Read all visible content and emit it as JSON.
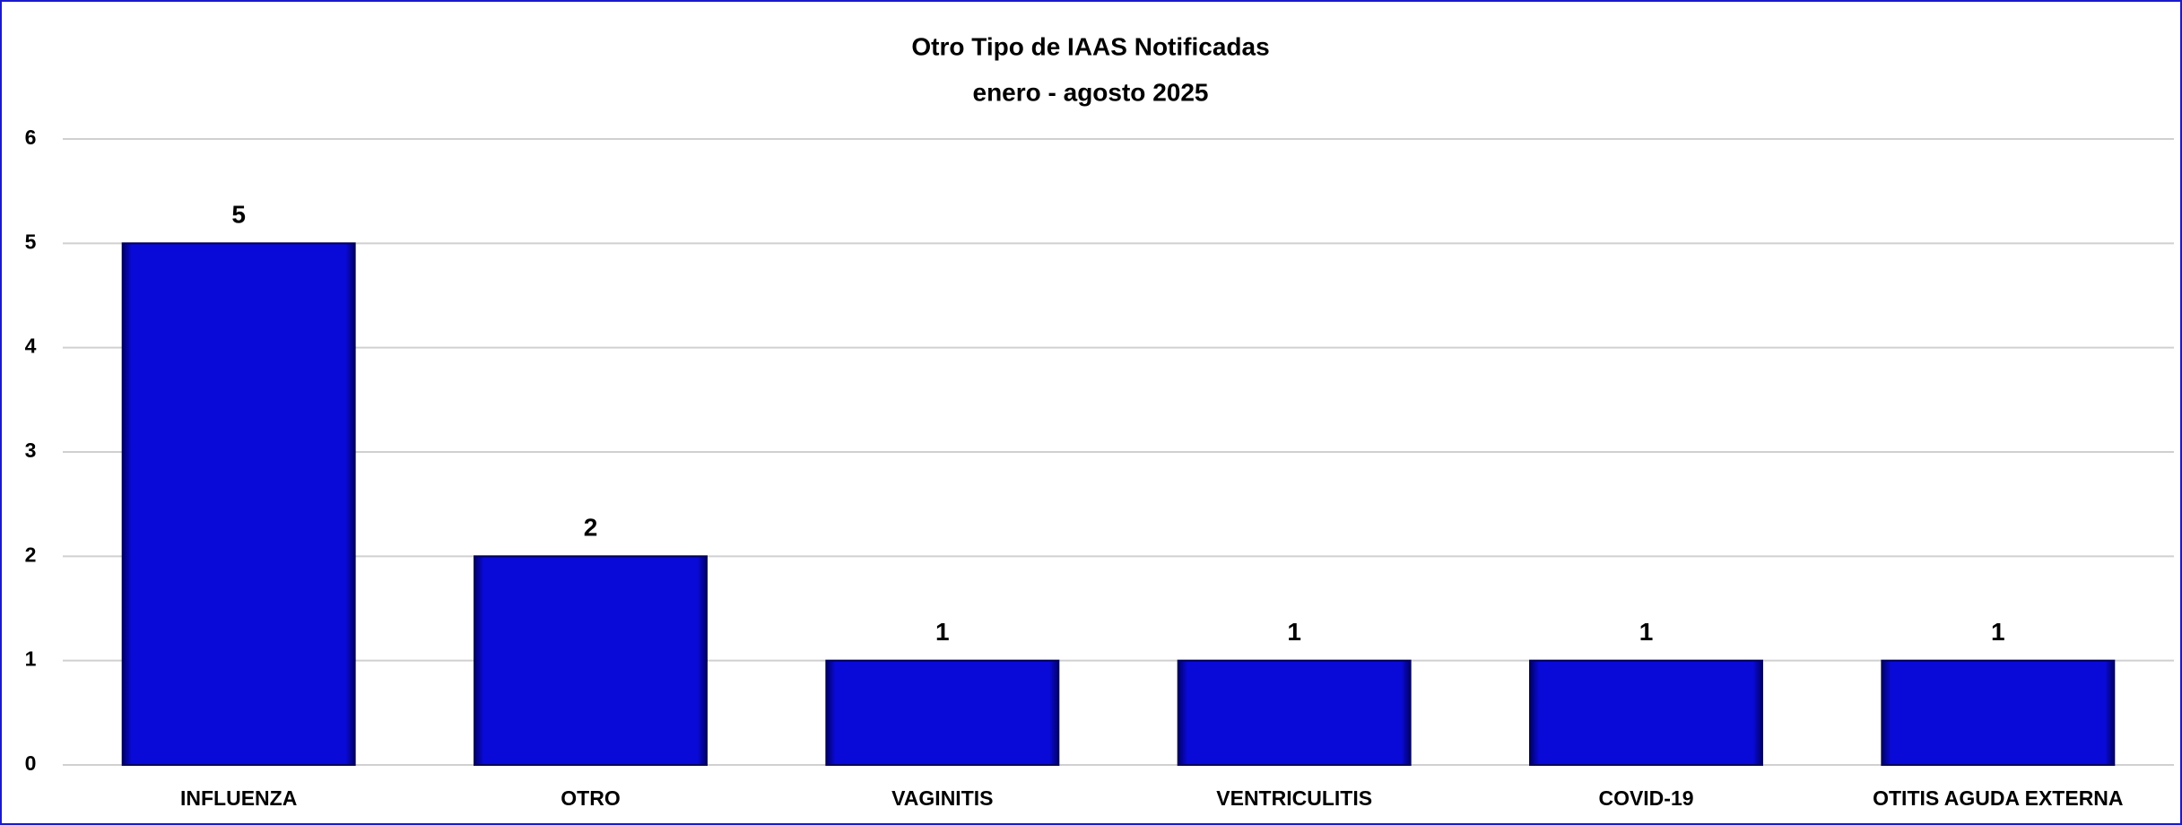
{
  "chart_data": {
    "type": "bar",
    "title": "Otro Tipo de IAAS Notificadas",
    "subtitle": "enero - agosto 2025",
    "categories": [
      "INFLUENZA",
      "OTRO",
      "VAGINITIS",
      "VENTRICULITIS",
      "COVID-19",
      "OTITIS AGUDA EXTERNA"
    ],
    "values": [
      5,
      2,
      1,
      1,
      1,
      1
    ],
    "color": "#0a0ad8",
    "ylim": [
      0,
      6
    ],
    "yticks": [
      0,
      1,
      2,
      3,
      4,
      5,
      6
    ],
    "grid": true
  }
}
